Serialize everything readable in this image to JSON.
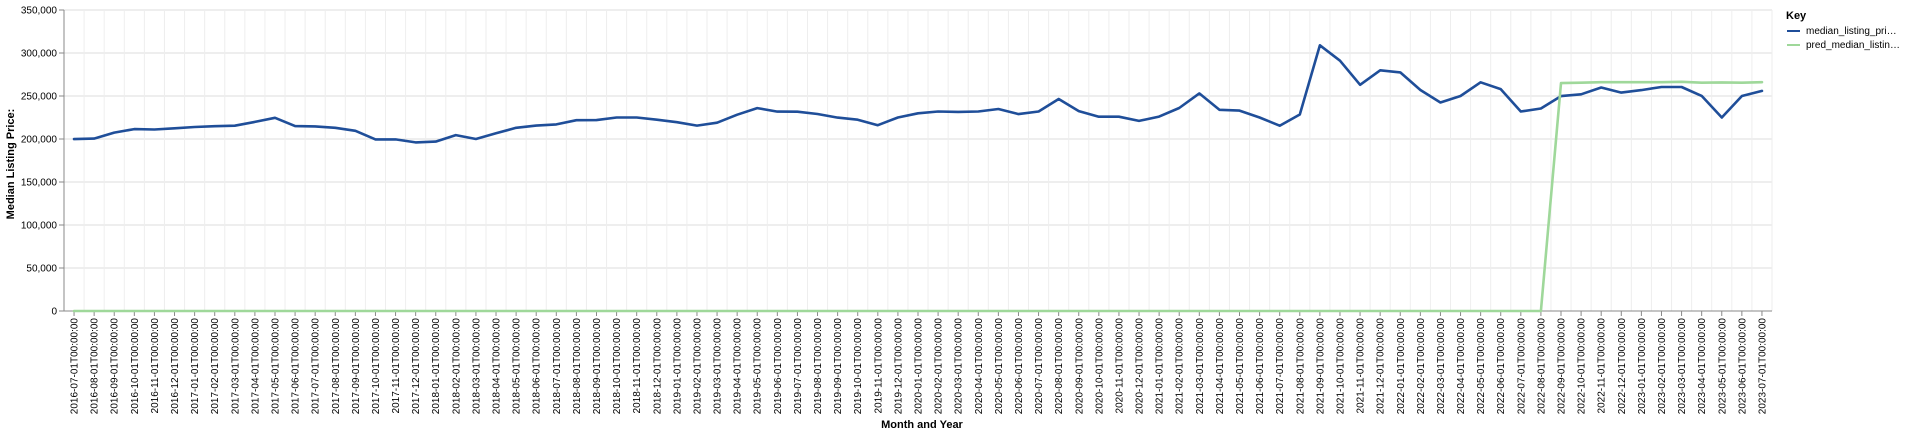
{
  "chart_data": {
    "type": "line",
    "xlabel": "Month and Year",
    "ylabel": "Median Listing Price:",
    "ylim": [
      0,
      350000
    ],
    "yticks": [
      0,
      50000,
      100000,
      150000,
      200000,
      250000,
      300000,
      350000
    ],
    "ytick_labels": [
      "0",
      "50,000",
      "100,000",
      "150,000",
      "200,000",
      "250,000",
      "300,000",
      "350,000"
    ],
    "grid": true,
    "legend_position": "top-right",
    "legend_title": "Key",
    "colors": {
      "median": "#1f4e99",
      "pred": "#9fd89a"
    },
    "x": [
      "2016-07-01T00:00:00",
      "2016-08-01T00:00:00",
      "2016-09-01T00:00:00",
      "2016-10-01T00:00:00",
      "2016-11-01T00:00:00",
      "2016-12-01T00:00:00",
      "2017-01-01T00:00:00",
      "2017-02-01T00:00:00",
      "2017-03-01T00:00:00",
      "2017-04-01T00:00:00",
      "2017-05-01T00:00:00",
      "2017-06-01T00:00:00",
      "2017-07-01T00:00:00",
      "2017-08-01T00:00:00",
      "2017-09-01T00:00:00",
      "2017-10-01T00:00:00",
      "2017-11-01T00:00:00",
      "2017-12-01T00:00:00",
      "2018-01-01T00:00:00",
      "2018-02-01T00:00:00",
      "2018-03-01T00:00:00",
      "2018-04-01T00:00:00",
      "2018-05-01T00:00:00",
      "2018-06-01T00:00:00",
      "2018-07-01T00:00:00",
      "2018-08-01T00:00:00",
      "2018-09-01T00:00:00",
      "2018-10-01T00:00:00",
      "2018-11-01T00:00:00",
      "2018-12-01T00:00:00",
      "2019-01-01T00:00:00",
      "2019-02-01T00:00:00",
      "2019-03-01T00:00:00",
      "2019-04-01T00:00:00",
      "2019-05-01T00:00:00",
      "2019-06-01T00:00:00",
      "2019-07-01T00:00:00",
      "2019-08-01T00:00:00",
      "2019-09-01T00:00:00",
      "2019-10-01T00:00:00",
      "2019-11-01T00:00:00",
      "2019-12-01T00:00:00",
      "2020-01-01T00:00:00",
      "2020-02-01T00:00:00",
      "2020-03-01T00:00:00",
      "2020-04-01T00:00:00",
      "2020-05-01T00:00:00",
      "2020-06-01T00:00:00",
      "2020-07-01T00:00:00",
      "2020-08-01T00:00:00",
      "2020-09-01T00:00:00",
      "2020-10-01T00:00:00",
      "2020-11-01T00:00:00",
      "2020-12-01T00:00:00",
      "2021-01-01T00:00:00",
      "2021-02-01T00:00:00",
      "2021-03-01T00:00:00",
      "2021-04-01T00:00:00",
      "2021-05-01T00:00:00",
      "2021-06-01T00:00:00",
      "2021-07-01T00:00:00",
      "2021-08-01T00:00:00",
      "2021-09-01T00:00:00",
      "2021-10-01T00:00:00",
      "2021-11-01T00:00:00",
      "2021-12-01T00:00:00",
      "2022-01-01T00:00:00",
      "2022-02-01T00:00:00",
      "2022-03-01T00:00:00",
      "2022-04-01T00:00:00",
      "2022-05-01T00:00:00",
      "2022-06-01T00:00:00",
      "2022-07-01T00:00:00",
      "2022-08-01T00:00:00",
      "2022-09-01T00:00:00",
      "2022-10-01T00:00:00",
      "2022-11-01T00:00:00",
      "2022-12-01T00:00:00",
      "2023-01-01T00:00:00",
      "2023-02-01T00:00:00",
      "2023-03-01T00:00:00",
      "2023-04-01T00:00:00",
      "2023-05-01T00:00:00",
      "2023-06-01T00:00:00",
      "2023-07-01T00:00:00"
    ],
    "series": [
      {
        "name": "median_listing_pri…",
        "color_key": "median",
        "values": [
          199900,
          200500,
          207500,
          211500,
          211000,
          212500,
          213900,
          214900,
          215500,
          219900,
          224700,
          215000,
          214600,
          213000,
          209500,
          199500,
          199500,
          196000,
          197000,
          204500,
          200000,
          206600,
          213000,
          215600,
          217000,
          221900,
          222000,
          225000,
          225000,
          222500,
          219500,
          215600,
          219000,
          228200,
          235900,
          231900,
          231800,
          229100,
          224900,
          222500,
          216000,
          225000,
          229900,
          232000,
          231500,
          232000,
          234900,
          229000,
          232000,
          246500,
          232500,
          225900,
          225900,
          221000,
          226000,
          236000,
          253000,
          234000,
          233000,
          225000,
          215500,
          228500,
          309000,
          291000,
          263000,
          279900,
          277500,
          257000,
          242500,
          250000,
          265900,
          258000,
          232000,
          235500,
          249900,
          252000,
          259900,
          254000,
          256900,
          260500,
          260500,
          250100,
          225000,
          250000,
          255900
        ]
      },
      {
        "name": "pred_median_listin…",
        "color_key": "pred",
        "values": [
          0,
          0,
          0,
          0,
          0,
          0,
          0,
          0,
          0,
          0,
          0,
          0,
          0,
          0,
          0,
          0,
          0,
          0,
          0,
          0,
          0,
          0,
          0,
          0,
          0,
          0,
          0,
          0,
          0,
          0,
          0,
          0,
          0,
          0,
          0,
          0,
          0,
          0,
          0,
          0,
          0,
          0,
          0,
          0,
          0,
          0,
          0,
          0,
          0,
          0,
          0,
          0,
          0,
          0,
          0,
          0,
          0,
          0,
          0,
          0,
          0,
          0,
          0,
          0,
          0,
          0,
          0,
          0,
          0,
          0,
          0,
          0,
          0,
          0,
          265000,
          265500,
          266000,
          266000,
          266000,
          266000,
          266500,
          265500,
          265800,
          265500,
          266000
        ]
      }
    ]
  }
}
